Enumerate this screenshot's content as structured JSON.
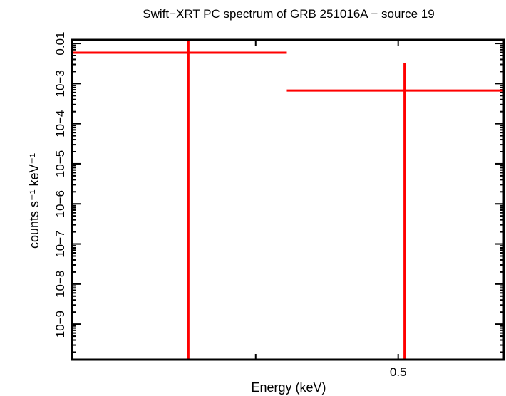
{
  "chart_data": {
    "type": "scatter",
    "title": "Swift−XRT PC spectrum of GRB 251016A − source 19",
    "xlabel": "Energy (keV)",
    "ylabel": "counts s⁻¹ keV⁻¹",
    "xscale": "log",
    "yscale": "log",
    "xlim": [
      0.3,
      0.59
    ],
    "ylim": [
      1.3e-10,
      0.0123
    ],
    "x_ticks": [
      {
        "value": 0.4,
        "label": ""
      },
      {
        "value": 0.5,
        "label": "0.5"
      }
    ],
    "y_ticks": [
      {
        "value": 0.01,
        "label": "0.01"
      },
      {
        "value": 0.001,
        "label": "10−3"
      },
      {
        "value": 0.0001,
        "label": "10−4"
      },
      {
        "value": 1e-05,
        "label": "10−5"
      },
      {
        "value": 1e-06,
        "label": "10−6"
      },
      {
        "value": 1e-07,
        "label": "10−7"
      },
      {
        "value": 1e-08,
        "label": "10−8"
      },
      {
        "value": 1e-09,
        "label": "10−9"
      }
    ],
    "grid": false,
    "series": [
      {
        "color": "#ff0000",
        "points": [
          {
            "x": 0.36,
            "xlo": 0.3,
            "xhi": 0.42,
            "y": 0.0059,
            "ylo": 1e-12,
            "yhi": 0.05
          },
          {
            "x": 0.505,
            "xlo": 0.42,
            "xhi": 0.6,
            "y": 0.00067,
            "ylo": 1e-12,
            "yhi": 0.0033
          }
        ]
      }
    ]
  }
}
